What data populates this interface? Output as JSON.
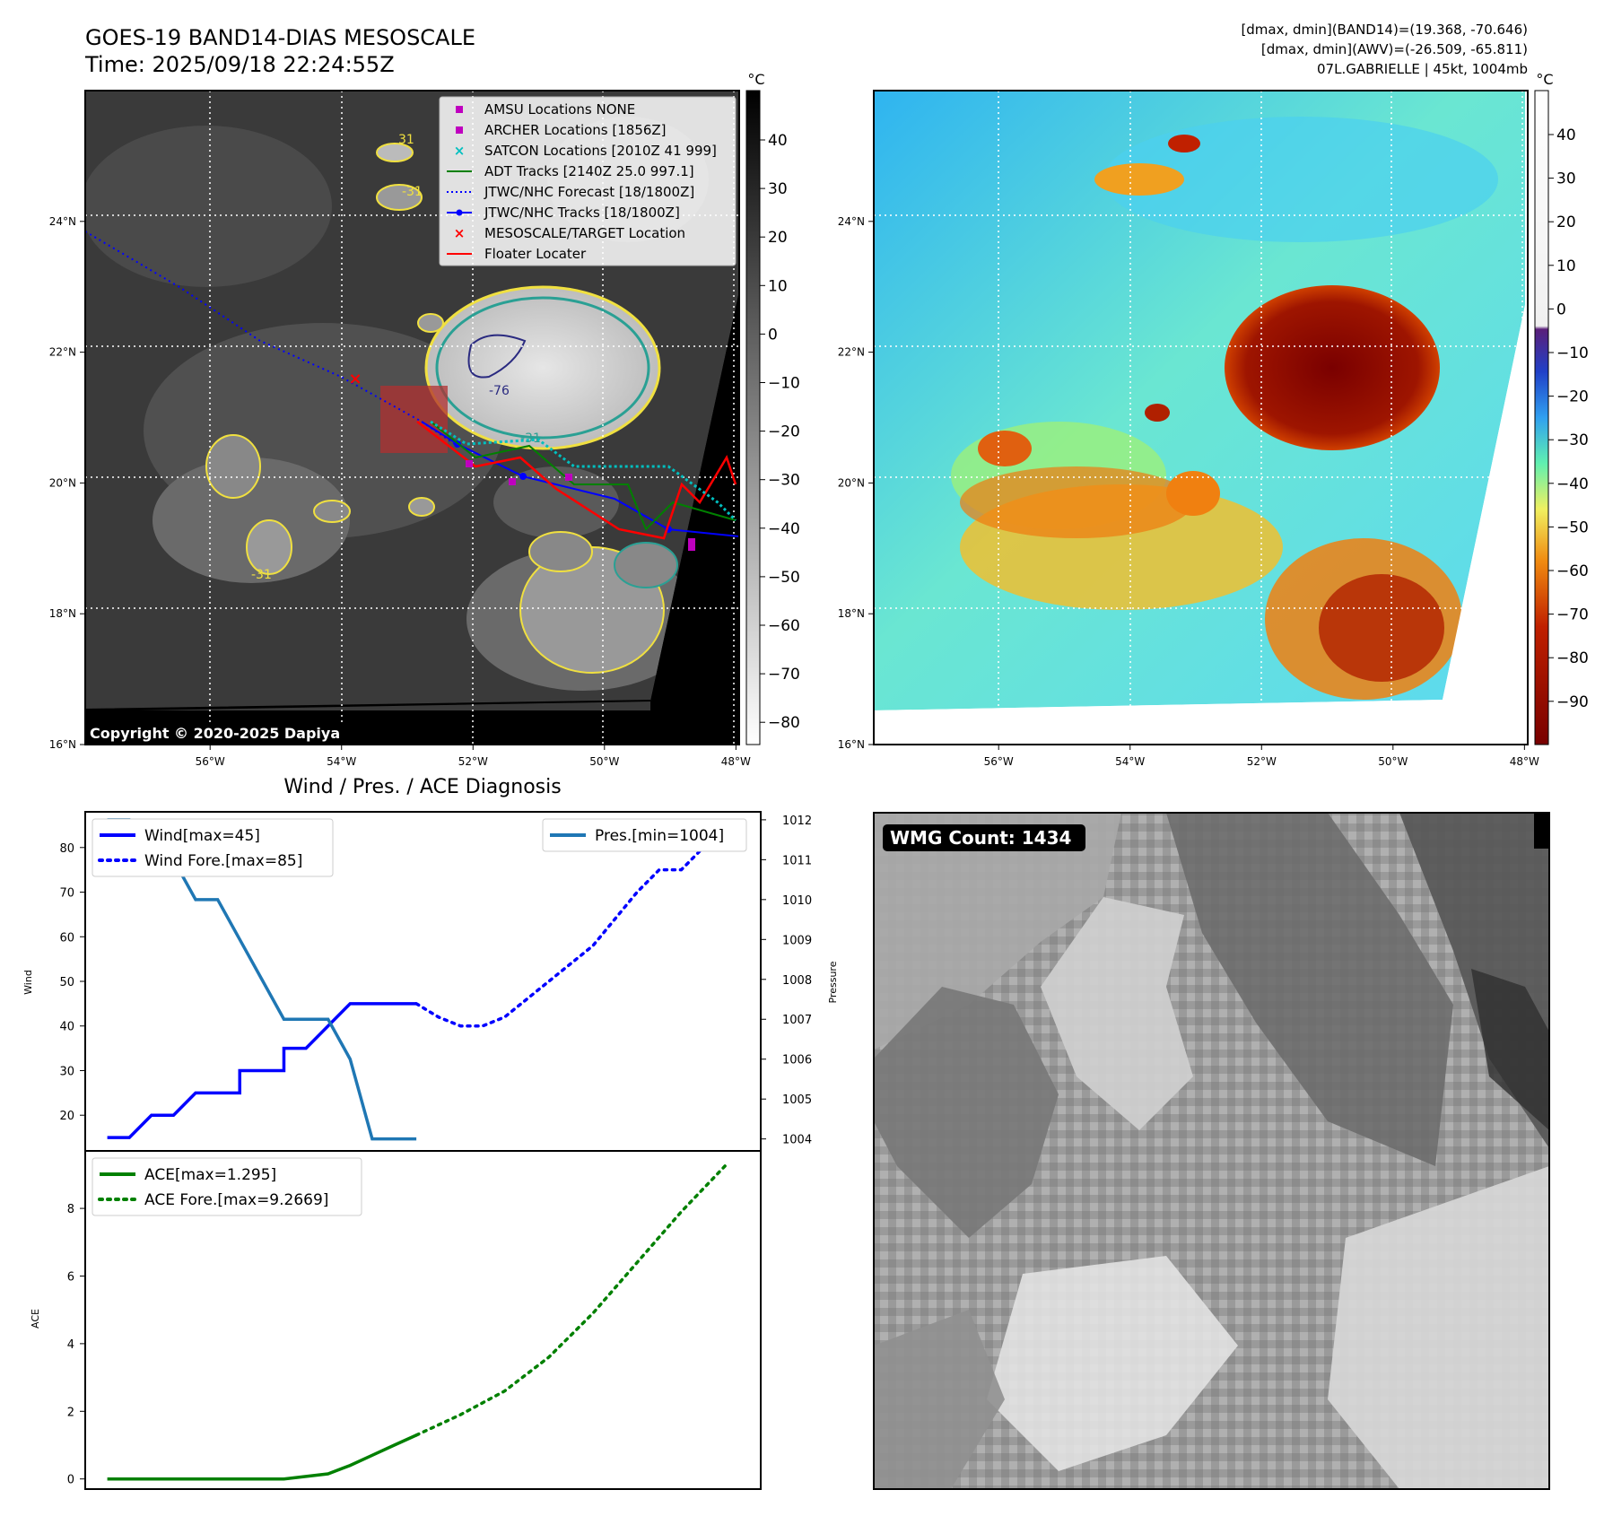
{
  "header": {
    "title_line1": "GOES-19 BAND14-DIAS MESOSCALE",
    "title_line2": "Time: 2025/09/18 22:24:55Z",
    "info_line1": "[dmax, dmin](BAND14)=(19.368, -70.646)",
    "info_line2": "[dmax, dmin](AWV)=(-26.509, -65.811)",
    "info_line3": "07L.GABRIELLE | 45kt, 1004mb"
  },
  "map_axes": {
    "lon_labels": [
      "56°W",
      "54°W",
      "52°W",
      "50°W",
      "48°W"
    ],
    "lon_values": [
      -56,
      -54,
      -52,
      -50,
      -48
    ],
    "lat_labels": [
      "24°N",
      "22°N",
      "20°N",
      "18°N",
      "16°N"
    ],
    "lat_values": [
      24,
      22,
      20,
      18,
      16
    ]
  },
  "left_map": {
    "copyright": "Copyright © 2020-2025 Dapiya",
    "contour_labels": [
      "31",
      "-31",
      "-76",
      "-31",
      "-31"
    ],
    "legend": [
      {
        "label": "AMSU Locations NONE",
        "marker": "square",
        "color": "#bf00bf"
      },
      {
        "label": "ARCHER Locations [1856Z]",
        "marker": "square",
        "color": "#bf00bf"
      },
      {
        "label": "SATCON Locations [2010Z 41 999]",
        "marker": "x",
        "color": "#00bfbf"
      },
      {
        "label": "ADT Tracks [2140Z 25.0 997.1]",
        "marker": "line",
        "color": "#008000"
      },
      {
        "label": "JTWC/NHC Forecast [18/1800Z]",
        "marker": "dotted",
        "color": "#0000ff"
      },
      {
        "label": "JTWC/NHC Tracks [18/1800Z]",
        "marker": "line-dot",
        "color": "#0000ff"
      },
      {
        "label": "MESOSCALE/TARGET Location",
        "marker": "x",
        "color": "#ff0000"
      },
      {
        "label": "Floater Locater",
        "marker": "line",
        "color": "#ff0000"
      }
    ]
  },
  "left_colorbar": {
    "unit": "°C",
    "ticks": [
      "40",
      "30",
      "20",
      "10",
      "0",
      "−10",
      "−20",
      "−30",
      "−40",
      "−50",
      "−60",
      "−70",
      "−80"
    ]
  },
  "right_colorbar": {
    "unit": "°C",
    "ticks": [
      "40",
      "30",
      "20",
      "10",
      "0",
      "−10",
      "−20",
      "−30",
      "−40",
      "−50",
      "−60",
      "−70",
      "−80",
      "−90"
    ]
  },
  "wmg": {
    "label": "WMG Count: 1434"
  },
  "colors": {
    "wind": "#0000ff",
    "pressure": "#1f77b4",
    "ace": "#008000"
  },
  "chart_data": [
    {
      "type": "line",
      "title": "Wind / Pres. / ACE Diagnosis",
      "ylabel": "Wind",
      "ylabel_right": "Pressure",
      "ylim": [
        12,
        88
      ],
      "ylim_right": [
        1003.7,
        1012.2
      ],
      "yticks": [
        20,
        30,
        40,
        50,
        60,
        70,
        80
      ],
      "yticks_right": [
        1004,
        1005,
        1006,
        1007,
        1008,
        1009,
        1010,
        1011,
        1012
      ],
      "series": [
        {
          "name": "Wind[max=45]",
          "style": "solid",
          "axis": "left",
          "x": [
            0,
            1,
            1,
            2,
            3,
            3,
            4,
            5,
            6,
            6,
            7,
            8,
            8,
            9,
            10,
            11,
            12,
            13,
            14
          ],
          "values": [
            15,
            15,
            15,
            20,
            20,
            20,
            25,
            25,
            25,
            30,
            30,
            30,
            35,
            35,
            40,
            45,
            45,
            45,
            45
          ]
        },
        {
          "name": "Wind Fore.[max=85]",
          "style": "dotted",
          "axis": "left",
          "x": [
            14,
            15,
            16,
            17,
            18,
            19,
            20,
            21,
            22,
            23,
            24,
            25,
            26,
            27,
            28
          ],
          "values": [
            45,
            42,
            40,
            40,
            42,
            46,
            50,
            54,
            58,
            64,
            70,
            75,
            75,
            80,
            85
          ]
        },
        {
          "name": "Pres.[min=1004]",
          "style": "solid",
          "axis": "right",
          "x": [
            0,
            1,
            2,
            3,
            4,
            5,
            6,
            7,
            8,
            9,
            10,
            11,
            12,
            13,
            14
          ],
          "values": [
            1012,
            1012,
            1011,
            1011,
            1010,
            1010,
            1009,
            1008,
            1007,
            1007,
            1007,
            1006,
            1004,
            1004,
            1004
          ]
        }
      ]
    },
    {
      "type": "line",
      "ylabel": "ACE",
      "ylim": [
        -0.3,
        9.7
      ],
      "yticks": [
        0,
        2,
        4,
        6,
        8
      ],
      "series": [
        {
          "name": "ACE[max=1.295]",
          "style": "solid",
          "x": [
            0,
            2,
            4,
            6,
            8,
            10,
            11,
            12,
            13,
            14
          ],
          "values": [
            0,
            0,
            0,
            0,
            0,
            0.15,
            0.4,
            0.7,
            1.0,
            1.295
          ]
        },
        {
          "name": "ACE Fore.[max=9.2669]",
          "style": "dotted",
          "x": [
            14,
            16,
            18,
            20,
            22,
            24,
            26,
            28
          ],
          "values": [
            1.295,
            1.9,
            2.6,
            3.6,
            4.9,
            6.4,
            7.9,
            9.2669
          ]
        }
      ]
    }
  ]
}
